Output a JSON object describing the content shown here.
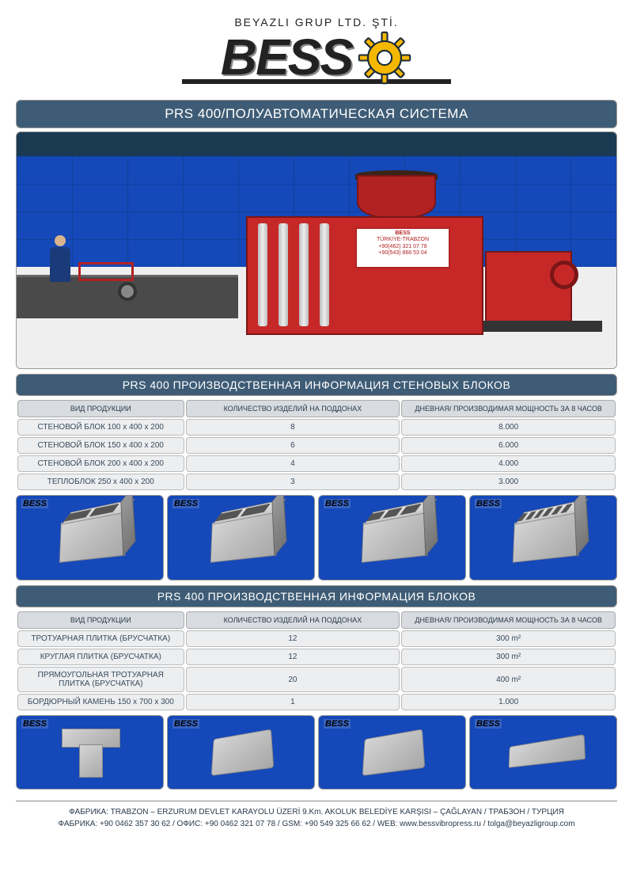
{
  "company": {
    "subtitle": "BEYAZLI GRUP LTD. ŞTİ.",
    "logo_text": "BESS"
  },
  "main_title": "PRS 400/ПОЛУАВТОМАТИЧЕСКАЯ СИСТЕМА",
  "machine_panel": {
    "line1": "BESS",
    "line2": "TÜRKİYE-TRABZON",
    "line3": "+90(462) 321 07 78",
    "line4": "+90(543) 868 53 04"
  },
  "section1": {
    "title": "PRS 400 ПРОИЗВОДСТВЕННАЯ ИНФОРМАЦИЯ СТЕНОВЫХ БЛОКОВ",
    "columns": [
      "ВИД ПРОДУКЦИИ",
      "КОЛИЧЕСТВО ИЗДЕЛИЙ НА ПОДДОНАХ",
      "ДНЕВНАЯ/ ПРОИЗВОДИМАЯ МОЩНОСТЬ ЗА 8 ЧАСОВ"
    ],
    "rows": [
      [
        "СТЕНОВОЙ БЛОК 100 x 400 x 200",
        "8",
        "8.000"
      ],
      [
        "СТЕНОВОЙ БЛОК 150 x 400 x 200",
        "6",
        "6.000"
      ],
      [
        "СТЕНОВОЙ БЛОК  200 x 400 x 200",
        "4",
        "4.000"
      ],
      [
        "ТЕПЛОБЛОК 250 x 400 x 200",
        "3",
        "3.000"
      ]
    ],
    "block_holes": [
      2,
      2,
      3,
      6
    ]
  },
  "section2": {
    "title": "PRS 400 ПРОИЗВОДСТВЕННАЯ ИНФОРМАЦИЯ БЛОКОВ",
    "columns": [
      "ВИД ПРОДУКЦИИ",
      "КОЛИЧЕСТВО ИЗДЕЛИЙ НА ПОДДОНАХ",
      "ДНЕВНАЯ/ ПРОИЗВОДИМАЯ МОЩНОСТЬ ЗА 8 ЧАСОВ"
    ],
    "rows": [
      [
        "ТРОТУАРНАЯ ПЛИТКА (БРУСЧАТКА)",
        "12",
        "300 m²"
      ],
      [
        "КРУГЛАЯ ПЛИТКА (БРУСЧАТКА)",
        "12",
        "300 m²"
      ],
      [
        "ПРЯМОУГОЛЬНАЯ ТРОТУАРНАЯ ПЛИТКА (БРУСЧАТКА)",
        "20",
        "400 m²"
      ],
      [
        "БОРДЮРНЫЙ КАМЕНЬ 150 x 700 x 300",
        "1",
        "1.000"
      ]
    ]
  },
  "footer": {
    "line1": "ФАБРИКА: TRABZON – ERZURUM DEVLET KARAYOLU ÜZERİ 9.Km. AKOLUK BELEDİYE KARŞISI – ÇAĞLAYAN / ТРАБЗОН / ТУРЦИЯ",
    "line2": "ФАБРИКА: +90 0462 357 30 62 / ОФИС: +90 0462 321 07 78 / GSM: +90 549 325 66 62 / WEB: www.bessvibropress.ru / tolga@beyazligroup.com"
  },
  "colors": {
    "header_bg": "#3e5c76",
    "machine_red": "#c62828",
    "wall_blue": "#1548b8",
    "th_bg": "#d8dce0",
    "td_bg": "#eceef0"
  }
}
